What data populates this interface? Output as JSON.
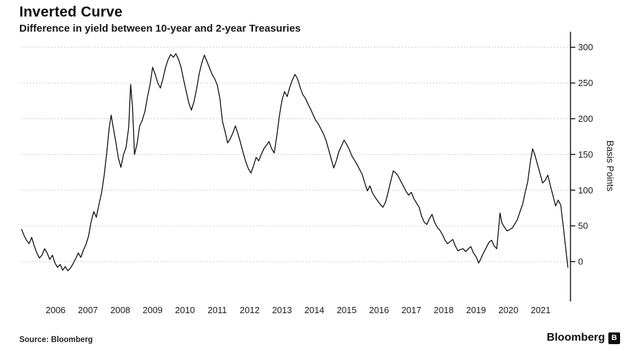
{
  "header": {
    "title": "Inverted Curve",
    "subtitle": "Difference in yield between 10-year and 2-year Treasuries"
  },
  "footer": {
    "source": "Source: Bloomberg",
    "brand": "Bloomberg",
    "logo_glyph": "B"
  },
  "chart_data": {
    "type": "line",
    "title": "Inverted Curve",
    "subtitle": "Difference in yield between 10-year and 2-year Treasuries",
    "series_name": "10-year minus 2-year Treasury yield spread",
    "xlabel": "",
    "ylabel": "Basis Points",
    "y_ticks": [
      0,
      50,
      100,
      150,
      200,
      250,
      300
    ],
    "x_ticks": [
      2006,
      2007,
      2008,
      2009,
      2010,
      2011,
      2012,
      2013,
      2014,
      2015,
      2016,
      2017,
      2018,
      2019,
      2020,
      2021
    ],
    "ylim": [
      -50,
      318
    ],
    "xlim": [
      2005.42,
      2022.42
    ],
    "grid": "horizontal-dotted",
    "legend": "none",
    "colors": {
      "line": "#0a0a0a",
      "grid": "#bdbdbd",
      "axis": "#1a1a1a",
      "text": "#1a1a1a",
      "background": "#ffffff"
    },
    "points": [
      [
        2005.45,
        45
      ],
      [
        2005.53,
        36
      ],
      [
        2005.6,
        30
      ],
      [
        2005.68,
        25
      ],
      [
        2005.76,
        34
      ],
      [
        2005.84,
        22
      ],
      [
        2005.92,
        12
      ],
      [
        2006.0,
        5
      ],
      [
        2006.08,
        9
      ],
      [
        2006.16,
        18
      ],
      [
        2006.24,
        12
      ],
      [
        2006.32,
        3
      ],
      [
        2006.4,
        9
      ],
      [
        2006.48,
        -2
      ],
      [
        2006.56,
        -8
      ],
      [
        2006.64,
        -4
      ],
      [
        2006.72,
        -12
      ],
      [
        2006.8,
        -7
      ],
      [
        2006.88,
        -13
      ],
      [
        2006.96,
        -9
      ],
      [
        2007.04,
        -3
      ],
      [
        2007.12,
        4
      ],
      [
        2007.2,
        12
      ],
      [
        2007.28,
        6
      ],
      [
        2007.36,
        16
      ],
      [
        2007.44,
        24
      ],
      [
        2007.52,
        36
      ],
      [
        2007.6,
        56
      ],
      [
        2007.68,
        70
      ],
      [
        2007.76,
        62
      ],
      [
        2007.84,
        80
      ],
      [
        2007.92,
        96
      ],
      [
        2008.0,
        120
      ],
      [
        2008.08,
        152
      ],
      [
        2008.16,
        188
      ],
      [
        2008.22,
        205
      ],
      [
        2008.28,
        188
      ],
      [
        2008.36,
        168
      ],
      [
        2008.44,
        145
      ],
      [
        2008.52,
        132
      ],
      [
        2008.6,
        150
      ],
      [
        2008.68,
        160
      ],
      [
        2008.76,
        188
      ],
      [
        2008.82,
        248
      ],
      [
        2008.88,
        215
      ],
      [
        2008.94,
        150
      ],
      [
        2009.02,
        165
      ],
      [
        2009.1,
        190
      ],
      [
        2009.18,
        198
      ],
      [
        2009.26,
        210
      ],
      [
        2009.34,
        230
      ],
      [
        2009.42,
        248
      ],
      [
        2009.5,
        272
      ],
      [
        2009.58,
        262
      ],
      [
        2009.66,
        250
      ],
      [
        2009.74,
        243
      ],
      [
        2009.82,
        256
      ],
      [
        2009.9,
        272
      ],
      [
        2009.98,
        283
      ],
      [
        2010.06,
        290
      ],
      [
        2010.14,
        286
      ],
      [
        2010.22,
        291
      ],
      [
        2010.3,
        283
      ],
      [
        2010.38,
        272
      ],
      [
        2010.46,
        254
      ],
      [
        2010.54,
        238
      ],
      [
        2010.62,
        222
      ],
      [
        2010.7,
        212
      ],
      [
        2010.78,
        224
      ],
      [
        2010.86,
        242
      ],
      [
        2010.94,
        263
      ],
      [
        2011.02,
        278
      ],
      [
        2011.1,
        289
      ],
      [
        2011.18,
        280
      ],
      [
        2011.26,
        271
      ],
      [
        2011.34,
        262
      ],
      [
        2011.42,
        256
      ],
      [
        2011.5,
        247
      ],
      [
        2011.58,
        228
      ],
      [
        2011.66,
        196
      ],
      [
        2011.74,
        182
      ],
      [
        2011.82,
        166
      ],
      [
        2011.9,
        172
      ],
      [
        2011.98,
        180
      ],
      [
        2012.06,
        190
      ],
      [
        2012.14,
        179
      ],
      [
        2012.22,
        166
      ],
      [
        2012.3,
        152
      ],
      [
        2012.38,
        140
      ],
      [
        2012.46,
        130
      ],
      [
        2012.54,
        124
      ],
      [
        2012.62,
        134
      ],
      [
        2012.7,
        146
      ],
      [
        2012.78,
        141
      ],
      [
        2012.86,
        150
      ],
      [
        2012.94,
        158
      ],
      [
        2013.02,
        163
      ],
      [
        2013.1,
        168
      ],
      [
        2013.18,
        158
      ],
      [
        2013.26,
        152
      ],
      [
        2013.34,
        176
      ],
      [
        2013.42,
        204
      ],
      [
        2013.5,
        226
      ],
      [
        2013.58,
        238
      ],
      [
        2013.66,
        231
      ],
      [
        2013.74,
        244
      ],
      [
        2013.82,
        254
      ],
      [
        2013.9,
        262
      ],
      [
        2013.98,
        256
      ],
      [
        2014.06,
        244
      ],
      [
        2014.14,
        234
      ],
      [
        2014.22,
        229
      ],
      [
        2014.3,
        221
      ],
      [
        2014.38,
        214
      ],
      [
        2014.46,
        206
      ],
      [
        2014.54,
        198
      ],
      [
        2014.62,
        193
      ],
      [
        2014.7,
        186
      ],
      [
        2014.78,
        179
      ],
      [
        2014.86,
        170
      ],
      [
        2014.94,
        157
      ],
      [
        2015.02,
        144
      ],
      [
        2015.1,
        131
      ],
      [
        2015.18,
        141
      ],
      [
        2015.26,
        154
      ],
      [
        2015.34,
        162
      ],
      [
        2015.42,
        170
      ],
      [
        2015.5,
        164
      ],
      [
        2015.58,
        157
      ],
      [
        2015.66,
        148
      ],
      [
        2015.74,
        142
      ],
      [
        2015.82,
        136
      ],
      [
        2015.9,
        129
      ],
      [
        2015.98,
        122
      ],
      [
        2016.06,
        110
      ],
      [
        2016.14,
        99
      ],
      [
        2016.22,
        106
      ],
      [
        2016.3,
        96
      ],
      [
        2016.38,
        90
      ],
      [
        2016.46,
        85
      ],
      [
        2016.54,
        80
      ],
      [
        2016.62,
        76
      ],
      [
        2016.7,
        83
      ],
      [
        2016.78,
        97
      ],
      [
        2016.86,
        112
      ],
      [
        2016.94,
        127
      ],
      [
        2017.02,
        124
      ],
      [
        2017.1,
        119
      ],
      [
        2017.18,
        112
      ],
      [
        2017.26,
        105
      ],
      [
        2017.34,
        98
      ],
      [
        2017.42,
        93
      ],
      [
        2017.5,
        97
      ],
      [
        2017.58,
        88
      ],
      [
        2017.66,
        82
      ],
      [
        2017.74,
        76
      ],
      [
        2017.82,
        63
      ],
      [
        2017.9,
        55
      ],
      [
        2017.98,
        52
      ],
      [
        2018.06,
        60
      ],
      [
        2018.14,
        66
      ],
      [
        2018.22,
        55
      ],
      [
        2018.3,
        48
      ],
      [
        2018.38,
        44
      ],
      [
        2018.46,
        38
      ],
      [
        2018.54,
        30
      ],
      [
        2018.62,
        25
      ],
      [
        2018.7,
        28
      ],
      [
        2018.78,
        31
      ],
      [
        2018.86,
        22
      ],
      [
        2018.94,
        15
      ],
      [
        2019.02,
        17
      ],
      [
        2019.1,
        18
      ],
      [
        2019.18,
        14
      ],
      [
        2019.26,
        18
      ],
      [
        2019.34,
        21
      ],
      [
        2019.42,
        12
      ],
      [
        2019.5,
        7
      ],
      [
        2019.58,
        -2
      ],
      [
        2019.66,
        5
      ],
      [
        2019.74,
        13
      ],
      [
        2019.82,
        20
      ],
      [
        2019.9,
        27
      ],
      [
        2019.98,
        30
      ],
      [
        2020.06,
        22
      ],
      [
        2020.14,
        18
      ],
      [
        2020.2,
        47
      ],
      [
        2020.24,
        68
      ],
      [
        2020.3,
        54
      ],
      [
        2020.38,
        48
      ],
      [
        2020.46,
        43
      ],
      [
        2020.54,
        45
      ],
      [
        2020.62,
        47
      ],
      [
        2020.7,
        53
      ],
      [
        2020.78,
        59
      ],
      [
        2020.86,
        70
      ],
      [
        2020.94,
        80
      ],
      [
        2021.02,
        97
      ],
      [
        2021.1,
        112
      ],
      [
        2021.18,
        140
      ],
      [
        2021.25,
        158
      ],
      [
        2021.32,
        149
      ],
      [
        2021.4,
        136
      ],
      [
        2021.48,
        123
      ],
      [
        2021.56,
        110
      ],
      [
        2021.64,
        114
      ],
      [
        2021.72,
        121
      ],
      [
        2021.8,
        106
      ],
      [
        2021.88,
        92
      ],
      [
        2021.96,
        78
      ],
      [
        2022.04,
        86
      ],
      [
        2022.12,
        79
      ],
      [
        2022.2,
        48
      ],
      [
        2022.28,
        16
      ],
      [
        2022.34,
        -8
      ]
    ]
  }
}
